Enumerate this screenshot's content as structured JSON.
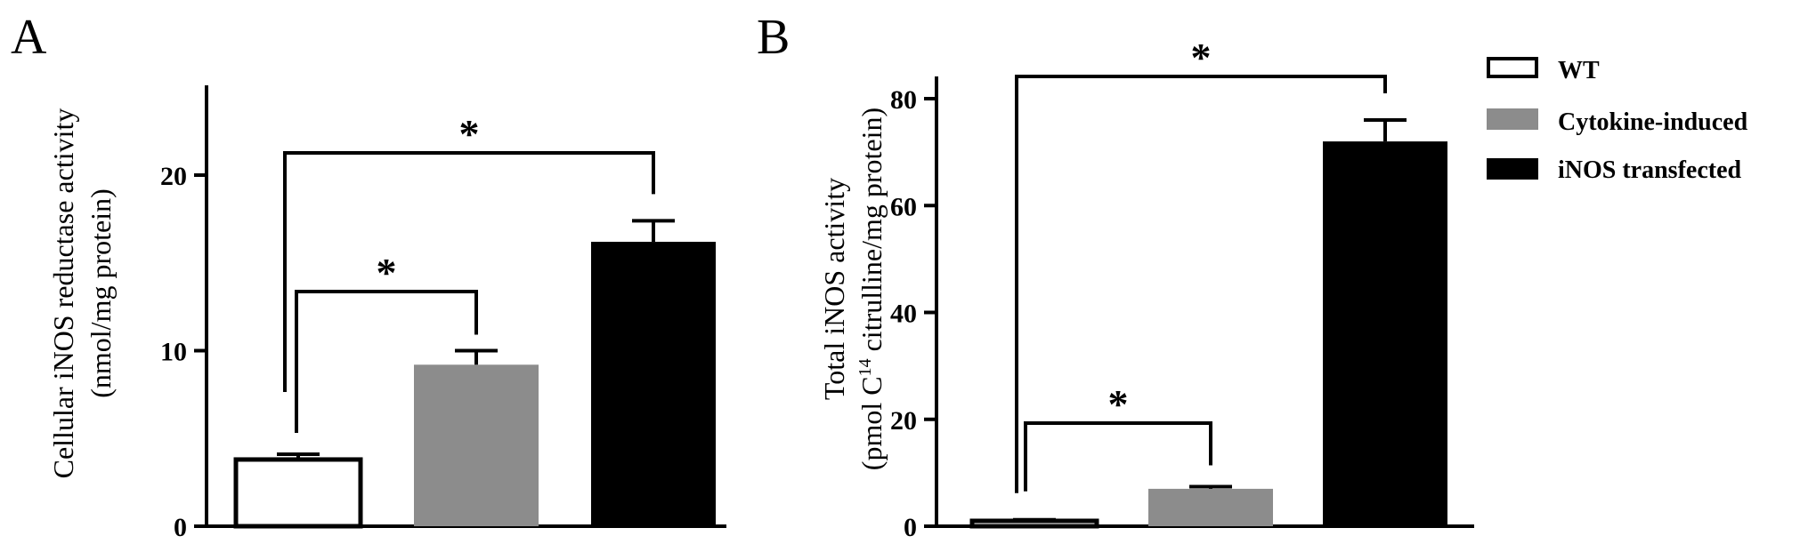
{
  "chart_data": [
    {
      "type": "bar",
      "panel": "A",
      "categories": [
        "WT",
        "Cytokine-induced",
        "iNOS transfected"
      ],
      "values": [
        3.8,
        9.2,
        16.2
      ],
      "errors": [
        0.3,
        0.8,
        1.2
      ],
      "ylabel_line1": "Cellular iNOS reductase activity",
      "ylabel_line2": "(nmol/mg protein)",
      "ylim": [
        0,
        25
      ],
      "yticks": [
        "0",
        "10",
        "20"
      ],
      "significance_star": "*"
    },
    {
      "type": "bar",
      "panel": "B",
      "categories": [
        "WT",
        "Cytokine-induced",
        "iNOS transfected"
      ],
      "values": [
        1.0,
        7.0,
        72.0
      ],
      "errors": [
        0.2,
        0.4,
        4.0
      ],
      "ylabel_line1": "Total iNOS activity",
      "ylabel_line2_pre": "(pmol C",
      "ylabel_line2_sup": "14",
      "ylabel_line2_post": " citrulline/mg protein)",
      "ylim": [
        0,
        85
      ],
      "yticks": [
        "0",
        "20",
        "40",
        "60",
        "80"
      ],
      "significance_star": "*"
    }
  ],
  "legend": [
    {
      "label": "WT",
      "fill": "#ffffff",
      "stroke": "#000000"
    },
    {
      "label": "Cytokine-induced",
      "fill": "#8c8c8c",
      "stroke": "#8c8c8c"
    },
    {
      "label": "iNOS transfected",
      "fill": "#000000",
      "stroke": "#000000"
    }
  ],
  "colors": [
    "#ffffff",
    "#8c8c8c",
    "#000000"
  ]
}
